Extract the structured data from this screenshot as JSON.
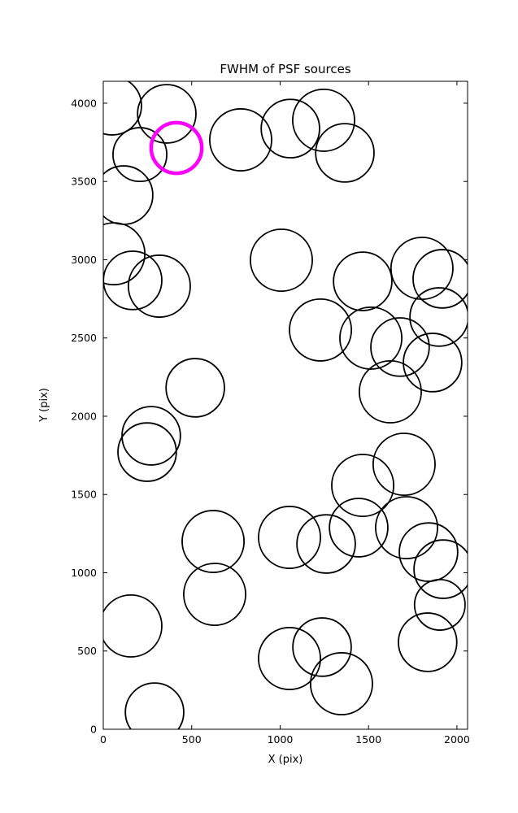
{
  "chart_data": {
    "type": "scatter",
    "title": "FWHM of PSF sources",
    "xlabel": "X (pix)",
    "ylabel": "Y (pix)",
    "xlim": [
      0,
      2060
    ],
    "ylim": [
      0,
      4140
    ],
    "xticks": [
      0,
      500,
      1000,
      1500,
      2000
    ],
    "yticks": [
      0,
      500,
      1000,
      1500,
      2000,
      2500,
      3000,
      3500,
      4000
    ],
    "grid": false,
    "legend": "none",
    "marker": "circle-outline",
    "circle_color": "#000000",
    "circle_stroke_width": 1.8,
    "highlight_color": "#ff00ff",
    "highlight_stroke_width": 4.5,
    "background_color": "#ffffff",
    "circles": [
      {
        "x": 51,
        "y": 3984,
        "r": 165
      },
      {
        "x": 359,
        "y": 3932,
        "r": 165
      },
      {
        "x": 207,
        "y": 3672,
        "r": 152
      },
      {
        "x": 777,
        "y": 3766,
        "r": 175
      },
      {
        "x": 1058,
        "y": 3838,
        "r": 165
      },
      {
        "x": 1246,
        "y": 3891,
        "r": 175
      },
      {
        "x": 1366,
        "y": 3683,
        "r": 165
      },
      {
        "x": 115,
        "y": 3413,
        "r": 165
      },
      {
        "x": 60,
        "y": 3038,
        "r": 175
      },
      {
        "x": 166,
        "y": 2868,
        "r": 165
      },
      {
        "x": 317,
        "y": 2831,
        "r": 175
      },
      {
        "x": 1007,
        "y": 2997,
        "r": 175
      },
      {
        "x": 1467,
        "y": 2862,
        "r": 165
      },
      {
        "x": 1802,
        "y": 2945,
        "r": 175
      },
      {
        "x": 1917,
        "y": 2878,
        "r": 165
      },
      {
        "x": 1899,
        "y": 2634,
        "r": 165
      },
      {
        "x": 1228,
        "y": 2551,
        "r": 175
      },
      {
        "x": 1513,
        "y": 2499,
        "r": 175
      },
      {
        "x": 1678,
        "y": 2442,
        "r": 165
      },
      {
        "x": 1862,
        "y": 2343,
        "r": 165
      },
      {
        "x": 1623,
        "y": 2156,
        "r": 175
      },
      {
        "x": 520,
        "y": 2182,
        "r": 165
      },
      {
        "x": 271,
        "y": 1875,
        "r": 165
      },
      {
        "x": 248,
        "y": 1771,
        "r": 165
      },
      {
        "x": 1701,
        "y": 1693,
        "r": 175
      },
      {
        "x": 1467,
        "y": 1558,
        "r": 175
      },
      {
        "x": 1444,
        "y": 1288,
        "r": 165
      },
      {
        "x": 1053,
        "y": 1226,
        "r": 175
      },
      {
        "x": 1260,
        "y": 1184,
        "r": 165
      },
      {
        "x": 1715,
        "y": 1288,
        "r": 175
      },
      {
        "x": 1839,
        "y": 1132,
        "r": 165
      },
      {
        "x": 1922,
        "y": 1023,
        "r": 165
      },
      {
        "x": 621,
        "y": 1200,
        "r": 175
      },
      {
        "x": 630,
        "y": 862,
        "r": 175
      },
      {
        "x": 156,
        "y": 660,
        "r": 175
      },
      {
        "x": 1053,
        "y": 452,
        "r": 175
      },
      {
        "x": 1237,
        "y": 525,
        "r": 165
      },
      {
        "x": 1347,
        "y": 291,
        "r": 175
      },
      {
        "x": 1834,
        "y": 556,
        "r": 165
      },
      {
        "x": 290,
        "y": 109,
        "r": 165
      },
      {
        "x": 1903,
        "y": 795,
        "r": 143
      }
    ],
    "highlight_circle": {
      "x": 414,
      "y": 3714,
      "r": 143
    }
  }
}
